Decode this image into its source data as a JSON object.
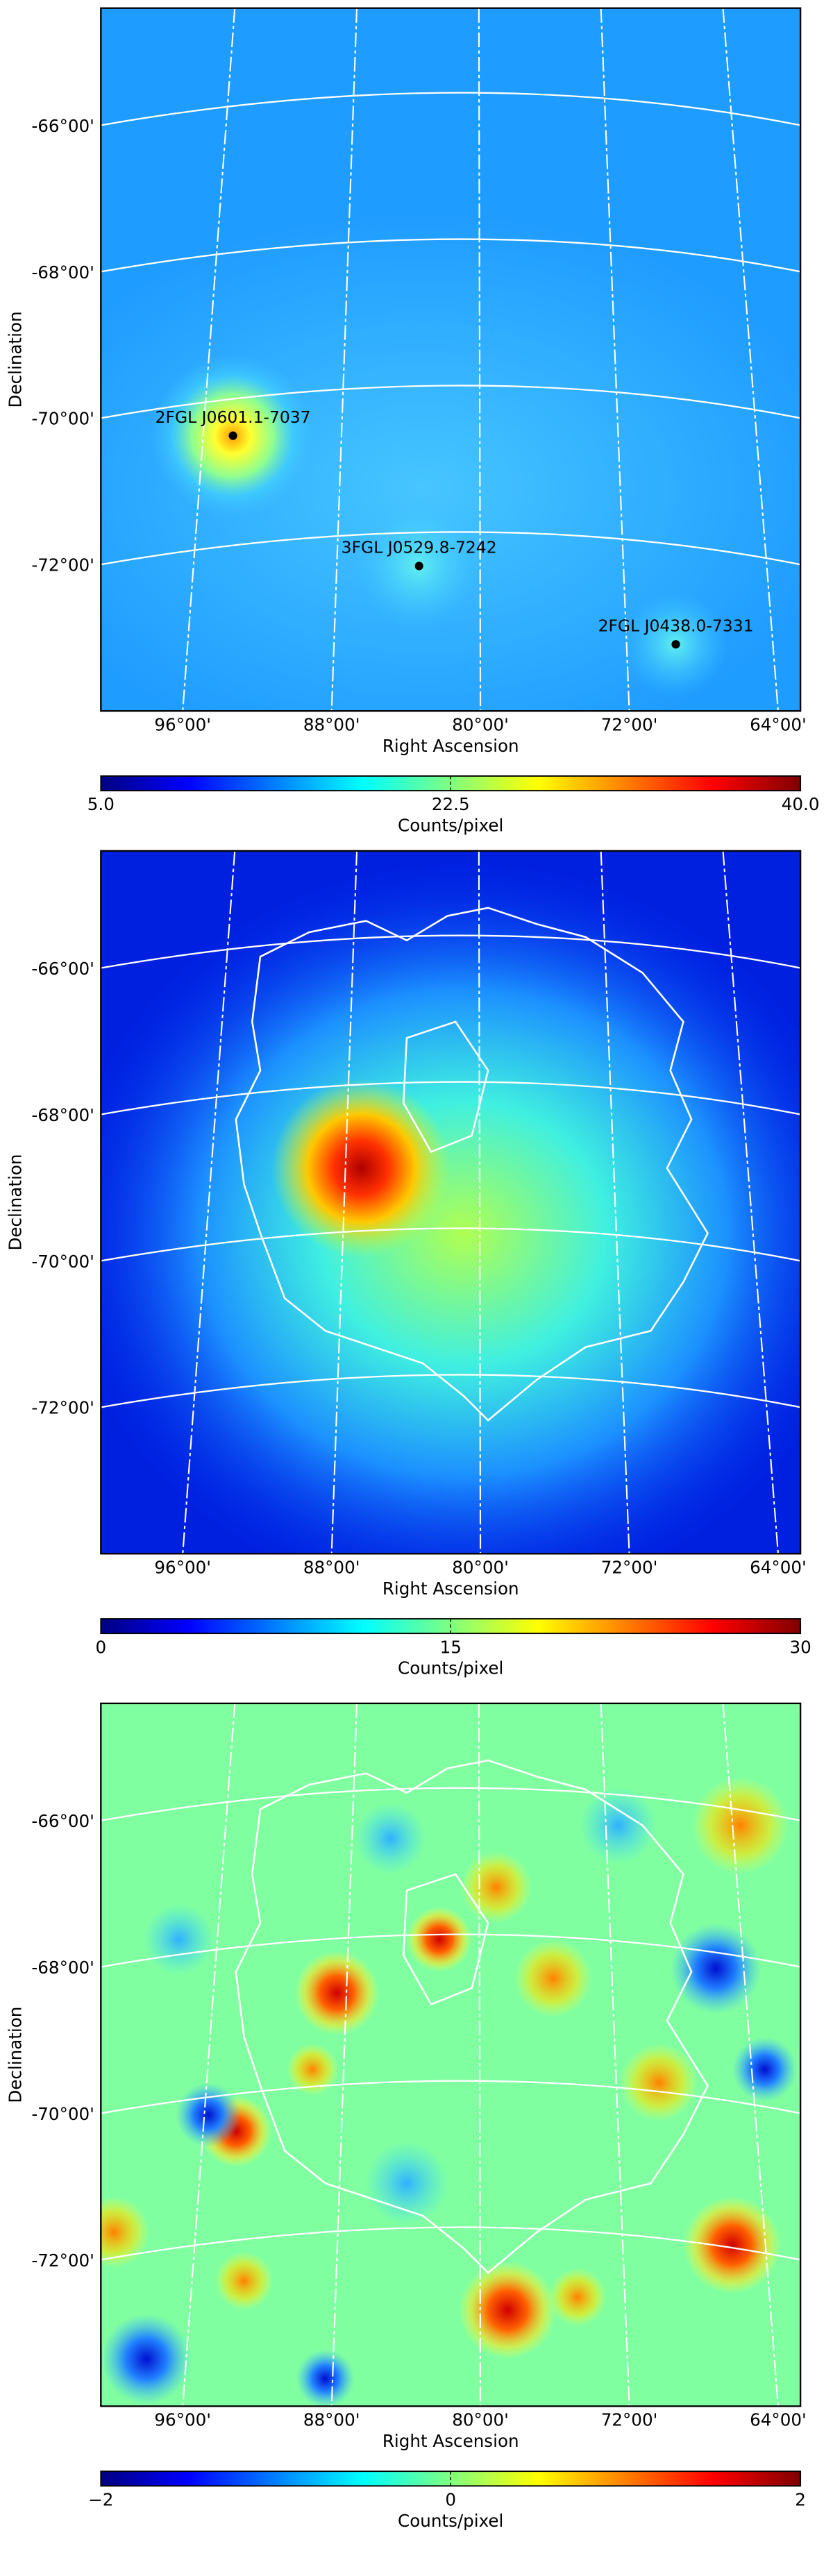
{
  "chart_data": [
    {
      "type": "heatmap",
      "colormap": "jet",
      "xlabel": "Right Ascension",
      "ylabel": "Declination",
      "xlim": [
        100.4,
        62.8
      ],
      "ylim": [
        -74,
        -64.4
      ],
      "xticks": [
        {
          "value": 96,
          "label": "96°00'"
        },
        {
          "value": 88,
          "label": "88°00'"
        },
        {
          "value": 80,
          "label": "80°00'"
        },
        {
          "value": 72,
          "label": "72°00'"
        },
        {
          "value": 64,
          "label": "64°00'"
        }
      ],
      "yticks": [
        {
          "value": -66,
          "label": "-66°00'"
        },
        {
          "value": -68,
          "label": "-68°00'"
        },
        {
          "value": -70,
          "label": "-70°00'"
        },
        {
          "value": -72,
          "label": "-72°00'"
        }
      ],
      "grid": true,
      "sources": [
        {
          "name": "2FGL J0601.1-7037",
          "x": 93.3,
          "y": -70.24
        },
        {
          "name": "3FGL J0529.8-7242",
          "x": 83.3,
          "y": -72.02
        },
        {
          "name": "2FGL J0438.0-7331",
          "x": 69.5,
          "y": -73.09
        }
      ],
      "colorbar": {
        "label": "Counts/pixel",
        "lim": [
          5,
          40
        ],
        "ticks": [
          {
            "value": 5,
            "label": "5.0"
          },
          22.5,
          {
            "value": 40,
            "label": "40.0"
          }
        ]
      }
    },
    {
      "type": "heatmap",
      "colormap": "jet",
      "xlabel": "Right Ascension",
      "ylabel": "Declination",
      "xlim": [
        100.4,
        62.8
      ],
      "ylim": [
        -74,
        -64.4
      ],
      "xticks": [
        {
          "value": 96,
          "label": "96°00'"
        },
        {
          "value": 88,
          "label": "88°00'"
        },
        {
          "value": 80,
          "label": "80°00'"
        },
        {
          "value": 72,
          "label": "72°00'"
        },
        {
          "value": 64,
          "label": "64°00'"
        }
      ],
      "yticks": [
        {
          "value": -66,
          "label": "-66°00'"
        },
        {
          "value": -68,
          "label": "-68°00'"
        },
        {
          "value": -70,
          "label": "-70°00'"
        },
        {
          "value": -72,
          "label": "-72°00'"
        }
      ],
      "grid": true,
      "colorbar": {
        "label": "Counts/pixel",
        "lim": [
          0,
          30
        ],
        "ticks": [
          0,
          15,
          30
        ]
      }
    },
    {
      "type": "heatmap",
      "colormap": "jet",
      "xlabel": "Right Ascension",
      "ylabel": "Declination",
      "xlim": [
        100.4,
        62.8
      ],
      "ylim": [
        -74,
        -64.4
      ],
      "xticks": [
        {
          "value": 96,
          "label": "96°00'"
        },
        {
          "value": 88,
          "label": "88°00'"
        },
        {
          "value": 80,
          "label": "80°00'"
        },
        {
          "value": 72,
          "label": "72°00'"
        },
        {
          "value": 64,
          "label": "64°00'"
        }
      ],
      "yticks": [
        {
          "value": -66,
          "label": "-66°00'"
        },
        {
          "value": -68,
          "label": "-68°00'"
        },
        {
          "value": -70,
          "label": "-70°00'"
        },
        {
          "value": -72,
          "label": "-72°00'"
        }
      ],
      "grid": true,
      "colorbar": {
        "label": "Counts/pixel",
        "lim": [
          -2,
          2
        ],
        "ticks": [
          {
            "value": -2,
            "label": "−2"
          },
          0,
          2
        ]
      }
    }
  ]
}
